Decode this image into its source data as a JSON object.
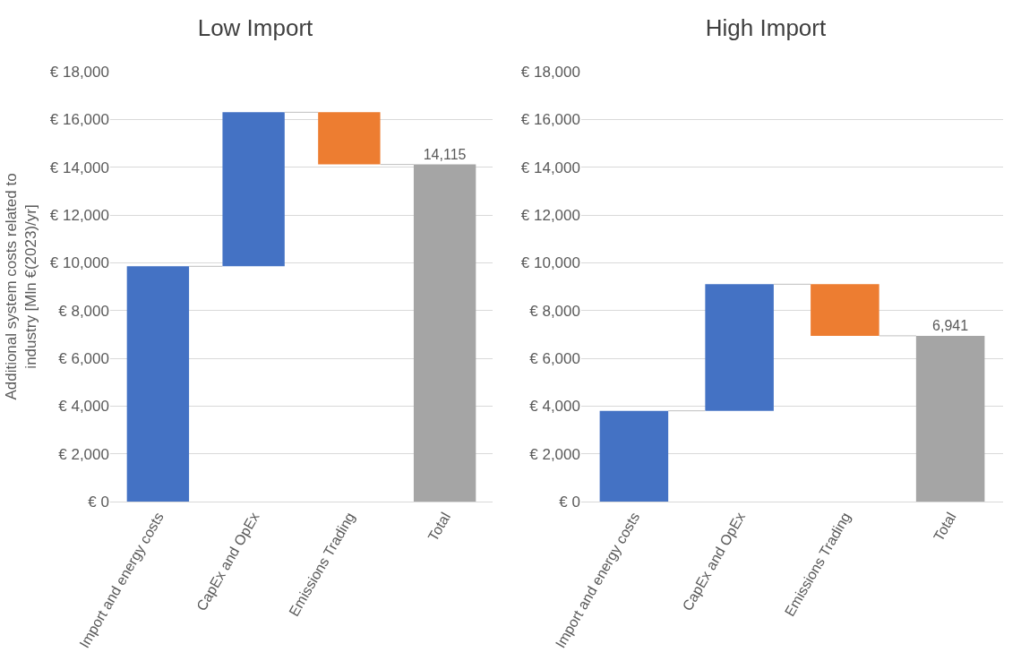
{
  "chart_data": [
    {
      "type": "bar",
      "title": "Low Import",
      "ylabel": "Additional system costs related to industry [Mln €(2023)/yr]",
      "categories": [
        "Import and energy costs",
        "CapEx and OpEx",
        "Emissions Trading",
        "Total"
      ],
      "values": [
        9850,
        6450,
        -2185,
        14115
      ],
      "base": [
        0,
        9850,
        16300,
        0
      ],
      "colors": [
        "#4472c4",
        "#4472c4",
        "#ed7d31",
        "#a5a5a5"
      ],
      "value_labels": [
        null,
        null,
        null,
        "14,115"
      ],
      "ylim": [
        0,
        18000
      ],
      "yticks": [
        {
          "value": 0,
          "label": "€ 0"
        },
        {
          "value": 2000,
          "label": "€ 2,000"
        },
        {
          "value": 4000,
          "label": "€ 4,000"
        },
        {
          "value": 6000,
          "label": "€ 6,000"
        },
        {
          "value": 8000,
          "label": "€ 8,000"
        },
        {
          "value": 10000,
          "label": "€ 10,000"
        },
        {
          "value": 12000,
          "label": "€ 12,000"
        },
        {
          "value": 14000,
          "label": "€ 14,000"
        },
        {
          "value": 16000,
          "label": "€ 16,000"
        },
        {
          "value": 18000,
          "label": "€ 18,000"
        }
      ],
      "grid": "y",
      "legend": false
    },
    {
      "type": "bar",
      "title": "High Import",
      "categories": [
        "Import and energy costs",
        "CapEx and OpEx",
        "Emissions Trading",
        "Total"
      ],
      "values": [
        3800,
        5300,
        -2159,
        6941
      ],
      "base": [
        0,
        3800,
        9100,
        0
      ],
      "colors": [
        "#4472c4",
        "#4472c4",
        "#ed7d31",
        "#a5a5a5"
      ],
      "value_labels": [
        null,
        null,
        null,
        "6,941"
      ],
      "ylim": [
        0,
        18000
      ],
      "yticks": [
        {
          "value": 0,
          "label": "€ 0"
        },
        {
          "value": 2000,
          "label": "€ 2,000"
        },
        {
          "value": 4000,
          "label": "€ 4,000"
        },
        {
          "value": 6000,
          "label": "€ 6,000"
        },
        {
          "value": 8000,
          "label": "€ 8,000"
        },
        {
          "value": 10000,
          "label": "€ 10,000"
        },
        {
          "value": 12000,
          "label": "€ 12,000"
        },
        {
          "value": 14000,
          "label": "€ 14,000"
        },
        {
          "value": 16000,
          "label": "€ 16,000"
        },
        {
          "value": 18000,
          "label": "€ 18,000"
        }
      ],
      "grid": "y",
      "legend": false
    }
  ]
}
